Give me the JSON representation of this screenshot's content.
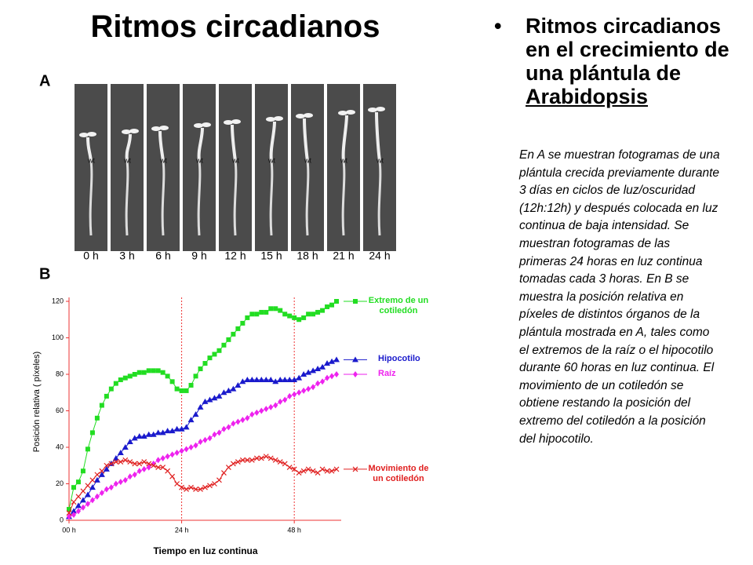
{
  "slide": {
    "title": "Ritmos circadianos",
    "bullet": "Ritmos circadianos en el crecimiento de una plántula de",
    "bullet_link": "Arabidopsis",
    "description": "En A se muestran fotogramas de una plántula crecida previamente durante 3 días en ciclos de luz/oscuridad (12h:12h) y después colocada en luz continua de baja intensidad. Se muestran fotogramas de las primeras 24 horas en luz continua tomadas cada 3 horas. En B se muestra la posición relativa en píxeles de distintos órganos de la plántula mostrada en A, tales como el extremos de la raíz o el hipocotilo durante 60 horas en luz continua. El movimiento de un cotiledón se obtiene restando la posición del extremo del cotiledón a la posición del hipocotilo.",
    "panel_a": {
      "label": "A",
      "frame_tag": "wt",
      "times": [
        "0 h",
        "3 h",
        "6 h",
        "9 h",
        "12 h",
        "15 h",
        "18 h",
        "21 h",
        "24 h"
      ]
    },
    "panel_b": {
      "label": "B"
    }
  },
  "chart_data": {
    "type": "line",
    "x_label": "Tiempo en luz continua",
    "y_label": "Posición relativa ( píxeles)",
    "xlim": [
      0,
      58
    ],
    "ylim": [
      0,
      120
    ],
    "xticks": [
      {
        "value": 0,
        "label": "00 h"
      },
      {
        "value": 24,
        "label": "24 h"
      },
      {
        "value": 48,
        "label": "48 h"
      }
    ],
    "yticks": [
      0,
      20,
      40,
      60,
      80,
      100,
      120
    ],
    "vlines": [
      24,
      48
    ],
    "legend": "right",
    "grid": false,
    "x": [
      0,
      1,
      2,
      3,
      4,
      5,
      6,
      7,
      8,
      9,
      10,
      11,
      12,
      13,
      14,
      15,
      16,
      17,
      18,
      19,
      20,
      21,
      22,
      23,
      24,
      25,
      26,
      27,
      28,
      29,
      30,
      31,
      32,
      33,
      34,
      35,
      36,
      37,
      38,
      39,
      40,
      41,
      42,
      43,
      44,
      45,
      46,
      47,
      48,
      49,
      50,
      51,
      52,
      53,
      54,
      55,
      56,
      57
    ],
    "series": [
      {
        "name": "Extremo de un cotiledón",
        "color": "#22dd22",
        "marker": "square",
        "values": [
          6,
          18,
          21,
          27,
          39,
          48,
          56,
          63,
          68,
          72,
          75,
          77,
          78,
          79,
          80,
          81,
          81,
          82,
          82,
          82,
          81,
          79,
          76,
          72,
          71,
          71,
          74,
          79,
          83,
          86,
          89,
          91,
          93,
          96,
          99,
          102,
          105,
          108,
          111,
          113,
          113,
          114,
          114,
          116,
          116,
          115,
          113,
          112,
          111,
          110,
          111,
          113,
          113,
          114,
          115,
          117,
          118,
          120
        ]
      },
      {
        "name": "Hipocotilo",
        "color": "#1a1acc",
        "marker": "triangle",
        "values": [
          2,
          5,
          8,
          11,
          14,
          18,
          22,
          25,
          28,
          31,
          34,
          37,
          40,
          43,
          45,
          46,
          46,
          47,
          47,
          48,
          48,
          49,
          49,
          50,
          50,
          51,
          55,
          58,
          62,
          65,
          66,
          67,
          68,
          70,
          71,
          72,
          74,
          76,
          77,
          77,
          77,
          77,
          77,
          77,
          76,
          77,
          77,
          77,
          77,
          78,
          80,
          81,
          82,
          83,
          84,
          86,
          87,
          88
        ]
      },
      {
        "name": "Raíz",
        "color": "#ee22ee",
        "marker": "diamond",
        "values": [
          2,
          3,
          5,
          7,
          9,
          11,
          13,
          15,
          17,
          18,
          20,
          21,
          22,
          24,
          25,
          27,
          28,
          29,
          31,
          33,
          34,
          35,
          36,
          37,
          38,
          39,
          40,
          41,
          43,
          44,
          45,
          47,
          48,
          50,
          51,
          53,
          54,
          55,
          56,
          58,
          59,
          60,
          61,
          62,
          63,
          65,
          66,
          68,
          69,
          70,
          71,
          72,
          73,
          75,
          76,
          78,
          79,
          80
        ]
      },
      {
        "name": "Movimiento de un cotiledón",
        "color": "#e02020",
        "marker": "x",
        "values": [
          4,
          10,
          13,
          16,
          19,
          22,
          25,
          27,
          30,
          31,
          32,
          32,
          33,
          32,
          31,
          31,
          32,
          31,
          30,
          29,
          29,
          27,
          24,
          20,
          18,
          17,
          18,
          17,
          17,
          18,
          19,
          20,
          22,
          26,
          29,
          31,
          32,
          33,
          33,
          33,
          34,
          34,
          35,
          34,
          33,
          32,
          31,
          29,
          28,
          26,
          27,
          28,
          27,
          26,
          28,
          27,
          27,
          28
        ]
      }
    ]
  }
}
